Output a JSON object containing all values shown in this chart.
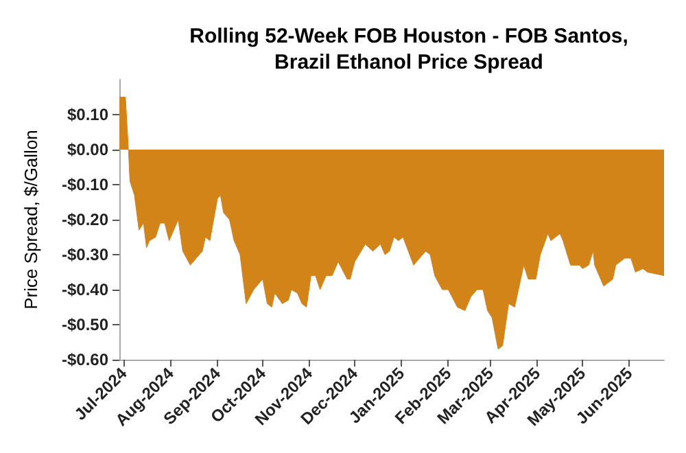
{
  "chart_data": {
    "type": "area",
    "title": "Rolling 52-Week FOB Houston - FOB Santos,\nBrazil Ethanol Price Spread",
    "ylabel": "Price Spread, $/Gallon",
    "x": [
      "2024-06-28",
      "2024-07-02",
      "2024-07-04",
      "2024-07-05",
      "2024-07-08",
      "2024-07-11",
      "2024-07-14",
      "2024-07-16",
      "2024-07-18",
      "2024-07-22",
      "2024-07-25",
      "2024-07-28",
      "2024-07-31",
      "2024-08-06",
      "2024-08-09",
      "2024-08-14",
      "2024-08-22",
      "2024-08-24",
      "2024-08-27",
      "2024-09-01",
      "2024-09-03",
      "2024-09-05",
      "2024-09-09",
      "2024-09-12",
      "2024-09-16",
      "2024-09-20",
      "2024-09-25",
      "2024-09-29",
      "2024-10-01",
      "2024-10-04",
      "2024-10-07",
      "2024-10-09",
      "2024-10-14",
      "2024-10-18",
      "2024-10-20",
      "2024-10-24",
      "2024-10-27",
      "2024-10-30",
      "2024-11-02",
      "2024-11-05",
      "2024-11-08",
      "2024-11-12",
      "2024-11-16",
      "2024-11-20",
      "2024-11-26",
      "2024-11-28",
      "2024-12-01",
      "2024-12-08",
      "2024-12-13",
      "2024-12-18",
      "2024-12-21",
      "2024-12-24",
      "2024-12-27",
      "2024-12-30",
      "2025-01-02",
      "2025-01-09",
      "2025-01-13",
      "2025-01-17",
      "2025-01-20",
      "2025-01-23",
      "2025-01-28",
      "2025-02-01",
      "2025-02-07",
      "2025-02-12",
      "2025-02-16",
      "2025-02-20",
      "2025-02-24",
      "2025-02-27",
      "2025-03-02",
      "2025-03-06",
      "2025-03-09",
      "2025-03-13",
      "2025-03-17",
      "2025-03-23",
      "2025-03-26",
      "2025-03-31",
      "2025-04-03",
      "2025-04-08",
      "2025-04-10",
      "2025-04-16",
      "2025-04-18",
      "2025-04-23",
      "2025-04-29",
      "2025-05-01",
      "2025-05-05",
      "2025-05-08",
      "2025-05-09",
      "2025-05-15",
      "2025-05-21",
      "2025-05-23",
      "2025-05-29",
      "2025-06-02",
      "2025-06-05",
      "2025-06-10",
      "2025-06-13",
      "2025-06-24"
    ],
    "values": [
      0.15,
      0.15,
      0,
      -0.09,
      -0.13,
      -0.23,
      -0.21,
      -0.28,
      -0.26,
      -0.25,
      -0.21,
      -0.21,
      -0.26,
      -0.2,
      -0.29,
      -0.33,
      -0.29,
      -0.25,
      -0.26,
      -0.14,
      -0.13,
      -0.18,
      -0.2,
      -0.26,
      -0.3,
      -0.44,
      -0.4,
      -0.38,
      -0.37,
      -0.44,
      -0.45,
      -0.41,
      -0.44,
      -0.43,
      -0.4,
      -0.41,
      -0.44,
      -0.45,
      -0.36,
      -0.36,
      -0.4,
      -0.36,
      -0.36,
      -0.32,
      -0.37,
      -0.37,
      -0.32,
      -0.27,
      -0.29,
      -0.27,
      -0.3,
      -0.29,
      -0.25,
      -0.26,
      -0.25,
      -0.33,
      -0.31,
      -0.29,
      -0.3,
      -0.36,
      -0.4,
      -0.4,
      -0.45,
      -0.46,
      -0.42,
      -0.4,
      -0.4,
      -0.46,
      -0.48,
      -0.57,
      -0.56,
      -0.44,
      -0.45,
      -0.33,
      -0.37,
      -0.37,
      -0.3,
      -0.24,
      -0.26,
      -0.24,
      -0.26,
      -0.33,
      -0.33,
      -0.34,
      -0.33,
      -0.29,
      -0.33,
      -0.39,
      -0.37,
      -0.33,
      -0.31,
      -0.31,
      -0.35,
      -0.34,
      -0.35,
      -0.36
    ],
    "color": "#d38418",
    "xlim": [
      "2024-06-28",
      "2025-06-24"
    ],
    "xticks": [
      {
        "value": "2024-07-01",
        "label": "Jul-2024"
      },
      {
        "value": "2024-08-01",
        "label": "Aug-2024"
      },
      {
        "value": "2024-09-01",
        "label": "Sep-2024"
      },
      {
        "value": "2024-10-01",
        "label": "Oct-2024"
      },
      {
        "value": "2024-11-01",
        "label": "Nov-2024"
      },
      {
        "value": "2024-12-01",
        "label": "Dec-2024"
      },
      {
        "value": "2025-01-01",
        "label": "Jan-2025"
      },
      {
        "value": "2025-02-01",
        "label": "Feb-2025"
      },
      {
        "value": "2025-03-01",
        "label": "Mar-2025"
      },
      {
        "value": "2025-04-01",
        "label": "Apr-2025"
      },
      {
        "value": "2025-05-01",
        "label": "May-2025"
      },
      {
        "value": "2025-06-01",
        "label": "Jun-2025"
      }
    ],
    "ylim": [
      -0.6,
      0.2
    ],
    "yticks": [
      {
        "value": -0.6,
        "label": "-$0.60"
      },
      {
        "value": -0.5,
        "label": "-$0.50"
      },
      {
        "value": -0.4,
        "label": "-$0.40"
      },
      {
        "value": -0.3,
        "label": "-$0.30"
      },
      {
        "value": -0.2,
        "label": "-$0.20"
      },
      {
        "value": -0.1,
        "label": "-$0.10"
      },
      {
        "value": 0,
        "label": "$0.00"
      },
      {
        "value": 0.1,
        "label": "$0.10"
      }
    ],
    "grid": false
  }
}
